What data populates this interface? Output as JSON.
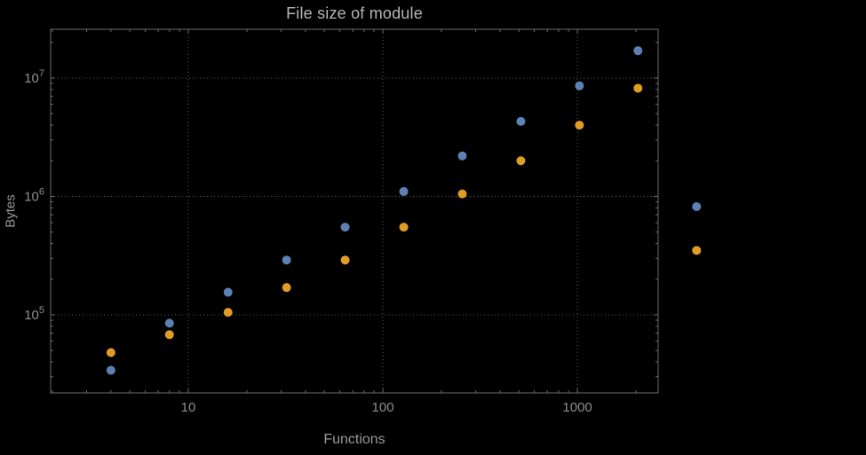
{
  "chart_data": {
    "type": "scatter",
    "title": "File size of module",
    "xlabel": "Functions",
    "ylabel": "Bytes",
    "x_scale": "log",
    "y_scale": "log",
    "grid": "dotted",
    "legend": "none",
    "x": [
      4,
      8,
      16,
      32,
      64,
      128,
      256,
      512,
      1024,
      2048,
      4096
    ],
    "series": [
      {
        "name": "blue-series",
        "color": "#5E81B5",
        "values": [
          34000,
          85000,
          155000,
          290000,
          550000,
          1100000,
          2200000,
          4300000,
          8600000,
          17000000,
          820000
        ]
      },
      {
        "name": "orange-series",
        "color": "#E19C24",
        "values": [
          48000,
          68000,
          105000,
          170000,
          290000,
          550000,
          1050000,
          2000000,
          4000000,
          8200000,
          350000
        ]
      }
    ],
    "x_ticks": [
      10,
      100,
      1000
    ],
    "x_tick_labels": [
      "10",
      "100",
      "1000"
    ],
    "y_ticks": [
      100000,
      1000000,
      10000000
    ],
    "y_tick_exponents": [
      5,
      6,
      7
    ],
    "xlim": [
      1.96,
      2600
    ],
    "ylim": [
      21900,
      25800000
    ],
    "colors": {
      "background": "#000000",
      "frame": "#6b6b6b",
      "grid": "#5a5a5a",
      "title": "#b5b5b5",
      "labels": "#989898",
      "tick_text": "#8f8f8f"
    }
  }
}
